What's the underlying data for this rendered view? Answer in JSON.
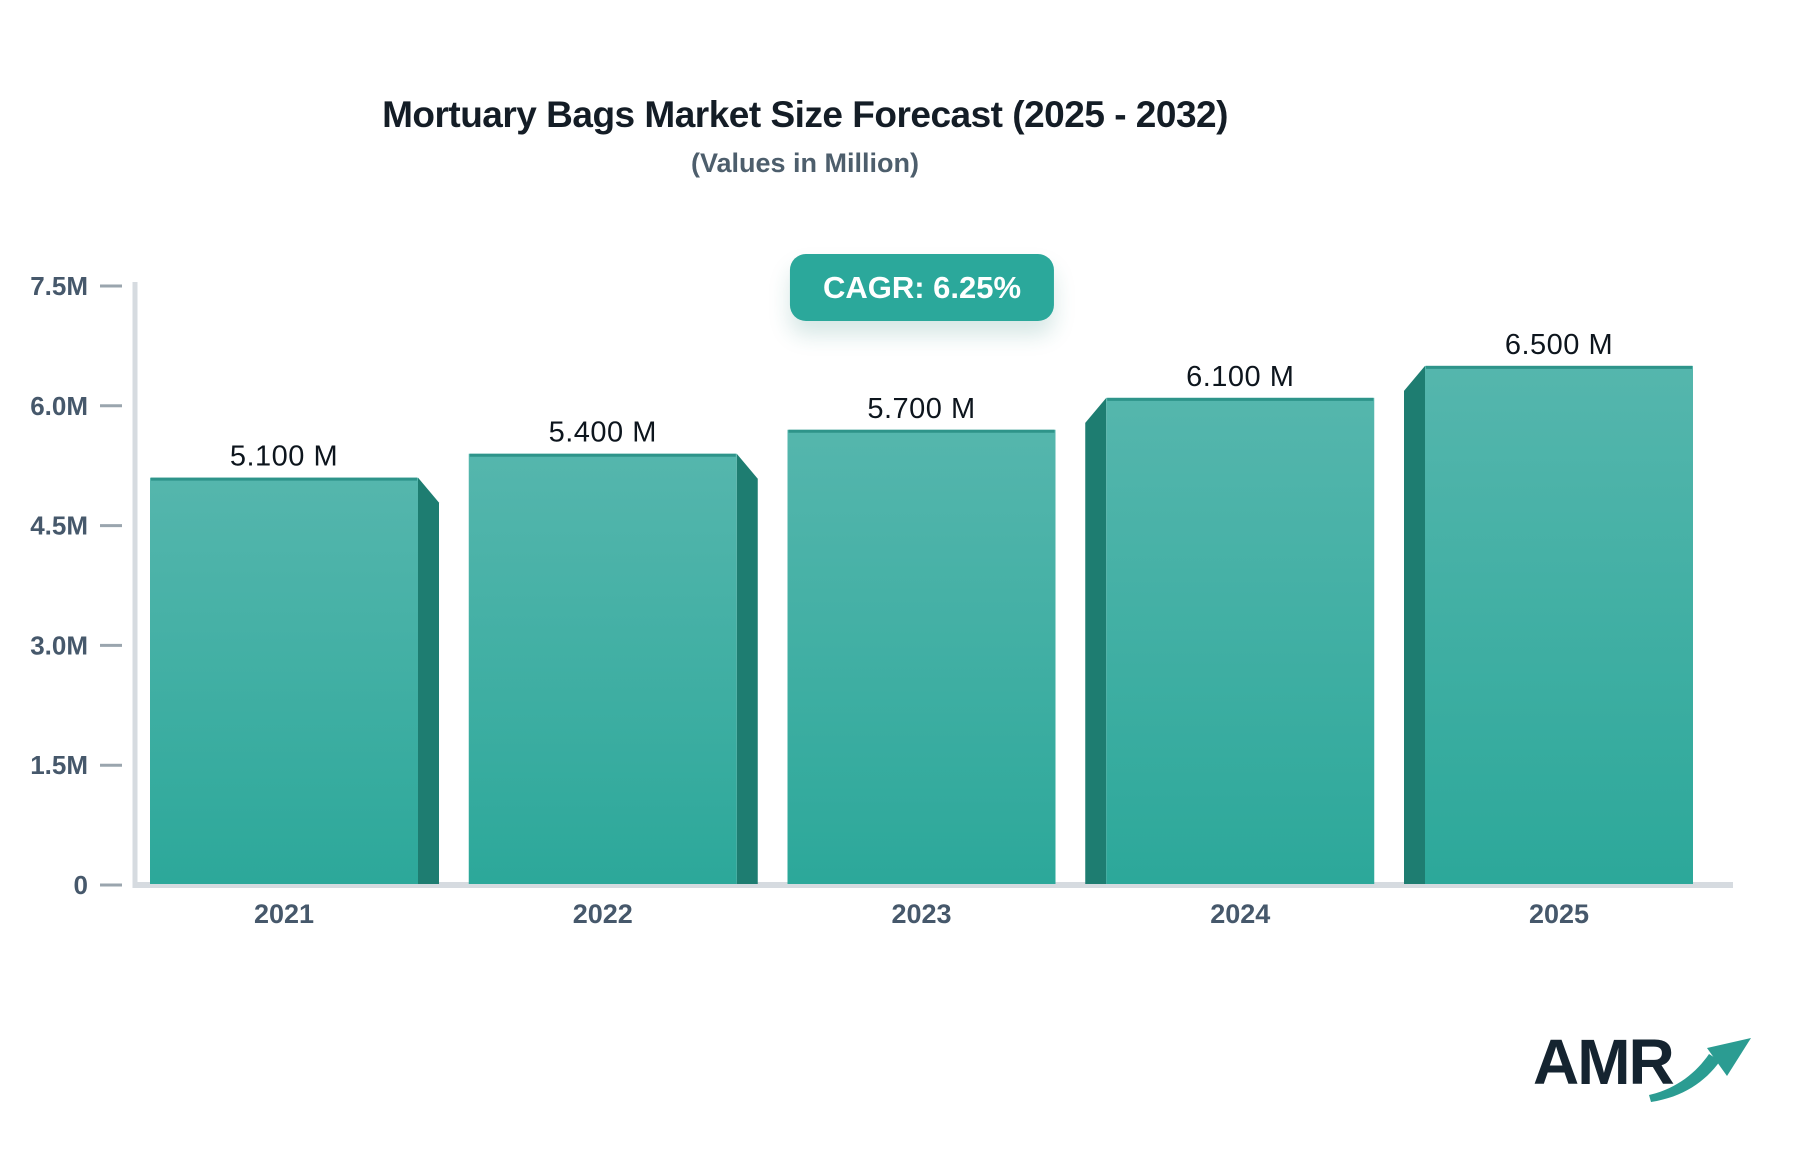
{
  "header": {
    "title": "Mortuary Bags Market Size Forecast (2025 - 2032)",
    "subtitle": "(Values in Million)",
    "cagr_badge": "CAGR: 6.25%"
  },
  "chart_data": {
    "type": "bar",
    "title": "Mortuary Bags Market Size Forecast (2025 - 2032)",
    "subtitle": "(Values in Million)",
    "unit": "Million",
    "cagr": "6.25%",
    "categories": [
      "2021",
      "2022",
      "2023",
      "2024",
      "2025"
    ],
    "values": [
      5.1,
      5.4,
      5.7,
      6.1,
      6.5
    ],
    "value_labels": [
      "5.100 M",
      "5.400 M",
      "5.700 M",
      "6.100 M",
      "6.500 M"
    ],
    "ylim": [
      0,
      7.5
    ],
    "y_ticks": [
      0,
      1.5,
      3.0,
      4.5,
      6.0,
      7.5
    ],
    "y_tick_labels": [
      "0",
      "1.5M",
      "3.0M",
      "4.5M",
      "6.0M",
      "7.5M"
    ],
    "grid": false,
    "legend": false
  },
  "colors": {
    "bar_top": "#55b6ad",
    "bar_bottom": "#2ca89a",
    "bar_top_edge": "#2e948a",
    "bar_side": "#1e7d71",
    "badge_bg": "#2ba89b",
    "badge_text": "#ffffff",
    "axis_line": "#d6dbe0",
    "tick_mark": "#9aa5ae",
    "tick_text": "#46586b",
    "value_text": "#0d151d",
    "title_text": "#141d26",
    "subtitle_text": "#4d5e6c",
    "logo_text": "#152430",
    "logo_arrow": "#2b9c92"
  },
  "logo": {
    "text": "AMR",
    "arrow_icon": "growth-arrow-icon"
  }
}
